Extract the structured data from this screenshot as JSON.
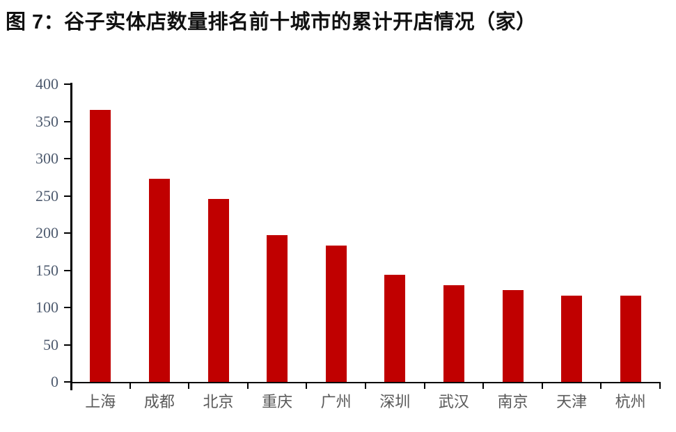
{
  "title": "图 7：谷子实体店数量排名前十城市的累计开店情况（家）",
  "colors": {
    "bar": "#c00000",
    "axis": "#000000",
    "y_tick_label": "#4d5a6e",
    "x_tick_label": "#595959",
    "title": "#111111",
    "background": "#ffffff"
  },
  "chart_data": {
    "type": "bar",
    "title": "图 7：谷子实体店数量排名前十城市的累计开店情况（家）",
    "categories": [
      "上海",
      "成都",
      "北京",
      "重庆",
      "广州",
      "深圳",
      "武汉",
      "南京",
      "天津",
      "杭州"
    ],
    "values": [
      365,
      273,
      246,
      197,
      183,
      144,
      130,
      123,
      116,
      116
    ],
    "xlabel": "",
    "ylabel": "",
    "ylim": [
      0,
      400
    ],
    "ytick_step": 50,
    "yticks": [
      0,
      50,
      100,
      150,
      200,
      250,
      300,
      350,
      400
    ],
    "grid": false,
    "legend": false,
    "bar_color": "#c00000",
    "unit": "家"
  }
}
